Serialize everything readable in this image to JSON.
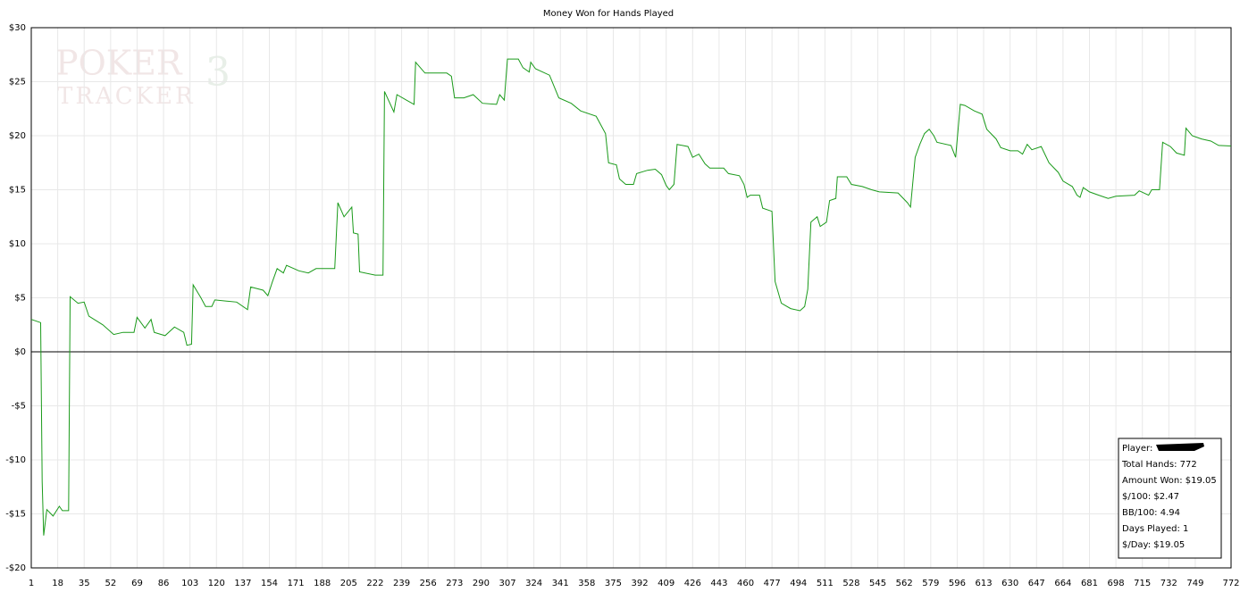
{
  "chart_data": {
    "type": "line",
    "title": "Money Won for Hands Played",
    "watermark": [
      "POKER",
      "TRACKER",
      "3"
    ],
    "xlim": [
      1,
      772
    ],
    "ylim": [
      -20,
      30
    ],
    "xticks": [
      1,
      18,
      35,
      52,
      69,
      86,
      103,
      120,
      137,
      154,
      171,
      188,
      205,
      222,
      239,
      256,
      273,
      290,
      307,
      324,
      341,
      358,
      375,
      392,
      409,
      426,
      443,
      460,
      477,
      494,
      511,
      528,
      545,
      562,
      579,
      596,
      613,
      630,
      647,
      664,
      681,
      698,
      715,
      732,
      749,
      772
    ],
    "yticks": [
      {
        "value": -20,
        "label": "-$20"
      },
      {
        "value": -15,
        "label": "-$15"
      },
      {
        "value": -10,
        "label": "-$10"
      },
      {
        "value": -5,
        "label": "-$5"
      },
      {
        "value": 0,
        "label": "$0"
      },
      {
        "value": 5,
        "label": "$5"
      },
      {
        "value": 10,
        "label": "$10"
      },
      {
        "value": 15,
        "label": "$15"
      },
      {
        "value": 20,
        "label": "$20"
      },
      {
        "value": 25,
        "label": "$25"
      },
      {
        "value": 30,
        "label": "$30"
      }
    ],
    "grid": true,
    "series": [
      {
        "name": "Money Won",
        "color": "#1a9a1a",
        "x": [
          1,
          7,
          8,
          9,
          11,
          15,
          19,
          21,
          25,
          26,
          31,
          35,
          38,
          47,
          54,
          60,
          67,
          69,
          74,
          78,
          80,
          87,
          93,
          99,
          101,
          104,
          105,
          110,
          113,
          117,
          119,
          133,
          140,
          142,
          150,
          153,
          156,
          159,
          163,
          165,
          173,
          179,
          184,
          196,
          198,
          202,
          207,
          208,
          211,
          212,
          222,
          227,
          228,
          234,
          236,
          242,
          247,
          248,
          254,
          268,
          271,
          273,
          279,
          285,
          291,
          300,
          302,
          305,
          307,
          314,
          317,
          321,
          322,
          325,
          334,
          340,
          348,
          354,
          364,
          370,
          372,
          377,
          379,
          383,
          388,
          390,
          397,
          402,
          406,
          409,
          411,
          414,
          416,
          423,
          426,
          430,
          434,
          437,
          446,
          449,
          456,
          459,
          461,
          463,
          469,
          471,
          477,
          479,
          483,
          489,
          495,
          498,
          500,
          502,
          506,
          508,
          512,
          514,
          518,
          519,
          525,
          528,
          535,
          541,
          546,
          558,
          564,
          566,
          569,
          572,
          575,
          578,
          581,
          583,
          592,
          595,
          598,
          601,
          607,
          612,
          615,
          621,
          624,
          630,
          635,
          638,
          641,
          644,
          650,
          653,
          655,
          661,
          664,
          670,
          673,
          675,
          677,
          681,
          687,
          693,
          698,
          710,
          713,
          719,
          721,
          726,
          728,
          733,
          737,
          742,
          743,
          747,
          753,
          759,
          764,
          772
        ],
        "values": [
          3.0,
          2.7,
          -12.0,
          -17.0,
          -14.6,
          -15.2,
          -14.3,
          -14.7,
          -14.7,
          5.1,
          4.5,
          4.6,
          3.3,
          2.5,
          1.6,
          1.8,
          1.8,
          3.2,
          2.2,
          3.0,
          1.8,
          1.5,
          2.3,
          1.8,
          0.6,
          0.7,
          6.2,
          5.0,
          4.2,
          4.2,
          4.8,
          4.6,
          3.9,
          6.0,
          5.7,
          5.2,
          6.5,
          7.7,
          7.3,
          8.0,
          7.5,
          7.3,
          7.7,
          7.7,
          13.8,
          12.5,
          13.4,
          11.0,
          10.9,
          7.4,
          7.1,
          7.1,
          24.1,
          22.2,
          23.8,
          23.3,
          22.9,
          26.8,
          25.8,
          25.8,
          25.5,
          23.5,
          23.5,
          23.8,
          23.0,
          22.9,
          23.8,
          23.3,
          27.1,
          27.1,
          26.3,
          25.9,
          26.8,
          26.2,
          25.6,
          23.5,
          23.0,
          22.3,
          21.8,
          20.2,
          17.5,
          17.3,
          16.0,
          15.5,
          15.5,
          16.5,
          16.8,
          16.9,
          16.4,
          15.4,
          15.0,
          15.5,
          19.2,
          19.0,
          18.0,
          18.3,
          17.4,
          17.0,
          17.0,
          16.5,
          16.3,
          15.5,
          14.3,
          14.5,
          14.5,
          13.3,
          13.0,
          6.5,
          4.5,
          4.0,
          3.8,
          4.2,
          5.8,
          12.0,
          12.5,
          11.6,
          12.0,
          14.0,
          14.2,
          16.2,
          16.2,
          15.5,
          15.3,
          15.0,
          14.8,
          14.7,
          13.8,
          13.4,
          18.0,
          19.2,
          20.2,
          20.6,
          20.0,
          19.4,
          19.1,
          18.0,
          22.9,
          22.8,
          22.3,
          22.0,
          20.6,
          19.7,
          18.9,
          18.6,
          18.6,
          18.3,
          19.2,
          18.7,
          19.0,
          18.1,
          17.5,
          16.6,
          15.8,
          15.3,
          14.5,
          14.3,
          15.2,
          14.8,
          14.5,
          14.2,
          14.4,
          14.5,
          14.9,
          14.5,
          15.0,
          15.0,
          19.4,
          19.0,
          18.4,
          18.2,
          20.7,
          20.0,
          19.7,
          19.5,
          19.1,
          19.05
        ]
      }
    ],
    "stats": {
      "player_label": "Player:",
      "lines": [
        "Total Hands: 772",
        "Amount Won: $19.05",
        "$/100: $2.47",
        "BB/100: 4.94",
        "Days Played: 1",
        "$/Day: $19.05"
      ]
    }
  }
}
